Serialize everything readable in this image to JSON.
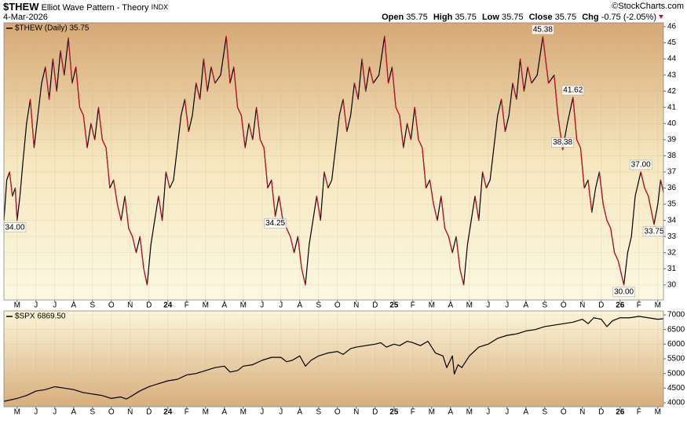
{
  "header": {
    "symbol": "$THEW",
    "name": "Elliot Wave Pattern - Theory",
    "exchange": "INDX",
    "date": "4-Mar-2026",
    "copyright": "©StockCharts.com",
    "quote": [
      {
        "label": "Open",
        "value": 35.75
      },
      {
        "label": "High",
        "value": 35.75
      },
      {
        "label": "Low",
        "value": 35.75
      },
      {
        "label": "Close",
        "value": 35.75
      },
      {
        "label": "Chg",
        "value": "-0.75 (-2.05%)"
      }
    ]
  },
  "chart_data": [
    {
      "type": "line",
      "xlim": [
        -0.7,
        34.3
      ],
      "ylim": [
        29.07,
        46.24
      ],
      "yticks": [
        30,
        31,
        32,
        33,
        34,
        35,
        36,
        37,
        38,
        39,
        40,
        41,
        42,
        43,
        44,
        45,
        46
      ],
      "grid": true,
      "xticks": [
        {
          "value": 0,
          "label": "M"
        },
        {
          "value": 1,
          "label": "J"
        },
        {
          "value": 2,
          "label": "J"
        },
        {
          "value": 3,
          "label": "A"
        },
        {
          "value": 4,
          "label": "S"
        },
        {
          "value": 5,
          "label": "O"
        },
        {
          "value": 6,
          "label": "N"
        },
        {
          "value": 7,
          "label": "D"
        },
        {
          "value": 8,
          "label": "24"
        },
        {
          "value": 9,
          "label": "F"
        },
        {
          "value": 10,
          "label": "M"
        },
        {
          "value": 11,
          "label": "A"
        },
        {
          "value": 12,
          "label": "M"
        },
        {
          "value": 13,
          "label": "J"
        },
        {
          "value": 14,
          "label": "J"
        },
        {
          "value": 15,
          "label": "A"
        },
        {
          "value": 16,
          "label": "S"
        },
        {
          "value": 17,
          "label": "O"
        },
        {
          "value": 18,
          "label": "N"
        },
        {
          "value": 19,
          "label": "D"
        },
        {
          "value": 20,
          "label": "25"
        },
        {
          "value": 21,
          "label": "F"
        },
        {
          "value": 22,
          "label": "M"
        },
        {
          "value": 23,
          "label": "A"
        },
        {
          "value": 24,
          "label": "M"
        },
        {
          "value": 25,
          "label": "J"
        },
        {
          "value": 26,
          "label": "J"
        },
        {
          "value": 27,
          "label": "A"
        },
        {
          "value": 28,
          "label": "S"
        },
        {
          "value": 29,
          "label": "O"
        },
        {
          "value": 30,
          "label": "N"
        },
        {
          "value": 31,
          "label": "D"
        },
        {
          "value": 32,
          "label": "26"
        },
        {
          "value": 33,
          "label": "F"
        },
        {
          "value": 34,
          "label": "M"
        }
      ],
      "series": [
        {
          "name": "$THEW (Daily) 35.75",
          "color": "#000000",
          "down_color": "#c8102e",
          "x": [
            -0.7,
            -0.55,
            -0.4,
            -0.25,
            -0.1,
            0,
            0.15,
            0.3,
            0.5,
            0.7,
            0.9,
            1.1,
            1.3,
            1.5,
            1.7,
            1.9,
            2.1,
            2.3,
            2.5,
            2.72,
            2.92,
            3.12,
            3.32,
            3.52,
            3.72,
            3.92,
            4.12,
            4.32,
            4.52,
            4.72,
            4.92,
            5.12,
            5.32,
            5.52,
            5.72,
            5.92,
            6.12,
            6.32,
            6.52,
            6.72,
            6.9,
            7.1,
            7.3,
            7.5,
            7.7,
            7.9,
            8.1,
            8.3,
            8.5,
            8.7,
            8.9,
            9.1,
            9.3,
            9.5,
            9.7,
            9.9,
            10.1,
            10.3,
            10.5,
            10.8,
            11.1,
            11.3,
            11.5,
            11.7,
            11.9,
            12.1,
            12.3,
            12.5,
            12.7,
            12.9,
            13.1,
            13.3,
            13.5,
            13.7,
            13.9,
            14.1,
            14.3,
            14.5,
            14.7,
            14.9,
            15.1,
            15.3,
            15.5,
            15.7,
            15.9,
            16.1,
            16.3,
            16.5,
            16.7,
            16.9,
            17.1,
            17.3,
            17.5,
            17.7,
            17.9,
            18.1,
            18.3,
            18.5,
            18.7,
            18.9,
            19.2,
            19.5,
            19.7,
            19.9,
            20.1,
            20.3,
            20.5,
            20.7,
            20.9,
            21.1,
            21.3,
            21.5,
            21.7,
            21.9,
            22.1,
            22.3,
            22.5,
            22.7,
            22.9,
            23.1,
            23.3,
            23.5,
            23.7,
            23.9,
            24.1,
            24.3,
            24.5,
            24.7,
            24.9,
            25.1,
            25.3,
            25.5,
            25.7,
            25.9,
            26.1,
            26.3,
            26.5,
            26.7,
            26.9,
            27.1,
            27.3,
            27.6,
            27.9,
            28.2,
            28.5,
            28.7,
            28.95,
            29.2,
            29.5,
            29.7,
            29.9,
            30.1,
            30.3,
            30.5,
            30.7,
            30.9,
            31.1,
            31.3,
            31.5,
            31.7,
            31.9,
            32.2,
            32.4,
            32.6,
            32.8,
            33.1,
            33.3,
            33.5,
            33.8,
            34.0,
            34.15,
            34.3
          ],
          "values": [
            34,
            36.5,
            37,
            35.5,
            36,
            34,
            35.5,
            37.5,
            40,
            41.5,
            38.5,
            40.5,
            42.5,
            43.5,
            41.5,
            44,
            42,
            44.5,
            43,
            45.3,
            42.5,
            43.5,
            41,
            40.5,
            38.5,
            40,
            39,
            41,
            39,
            38.5,
            36,
            36.5,
            35,
            34,
            35.5,
            33.5,
            33,
            32,
            33,
            31,
            30,
            32.5,
            34,
            35.5,
            34,
            37,
            36,
            36.5,
            38.5,
            40.5,
            41.5,
            39.5,
            40.5,
            42.5,
            41.5,
            44,
            42,
            43.5,
            42.5,
            43,
            45.4,
            42.5,
            43.5,
            41,
            40.5,
            38.5,
            40,
            39,
            41,
            39,
            38.5,
            36,
            36.5,
            34.25,
            35.5,
            34,
            33.5,
            33,
            32,
            33,
            31,
            30,
            32.5,
            34,
            35.5,
            34,
            37,
            36,
            36.5,
            38.5,
            40.5,
            41.5,
            39.5,
            40.5,
            42.5,
            41.5,
            44,
            42,
            43.5,
            42.5,
            43,
            45.4,
            42.5,
            43.5,
            41,
            40.5,
            38.5,
            40,
            39,
            41,
            39,
            38.5,
            36,
            36.5,
            35,
            34,
            35.5,
            33.5,
            33,
            32,
            33,
            31,
            30,
            32.5,
            34,
            35.5,
            34,
            37,
            36,
            36.5,
            38.5,
            40.5,
            41.5,
            39.5,
            40.5,
            42.5,
            41.5,
            44,
            42,
            43.5,
            42.5,
            43,
            45.38,
            42.5,
            43,
            40.5,
            38.38,
            40,
            41.62,
            39,
            38.5,
            36,
            36.5,
            34.5,
            36,
            37,
            35,
            34,
            33.5,
            32,
            31.5,
            30,
            32,
            33,
            35.5,
            37,
            36,
            35.5,
            33.75,
            35,
            36.5,
            35.75
          ]
        }
      ],
      "annotations": [
        {
          "x": -0.7,
          "y": 34,
          "label": "34.00"
        },
        {
          "x": 13.7,
          "y": 34.25,
          "label": "34.25"
        },
        {
          "x": 27.9,
          "y": 45.38,
          "label": "45.38"
        },
        {
          "x": 28.95,
          "y": 38.38,
          "label": "38.38"
        },
        {
          "x": 29.5,
          "y": 41.62,
          "label": "41.62"
        },
        {
          "x": 32.2,
          "y": 30,
          "label": "30.00"
        },
        {
          "x": 33.1,
          "y": 37,
          "label": "37.00"
        },
        {
          "x": 33.8,
          "y": 33.75,
          "label": "33.75"
        }
      ]
    },
    {
      "type": "line",
      "xlim": [
        -0.7,
        34.3
      ],
      "ylim": [
        3866,
        7134
      ],
      "yticks": [
        4000,
        4500,
        5000,
        5500,
        6000,
        6500,
        7000
      ],
      "grid": true,
      "xticks": [
        {
          "value": 0,
          "label": "M"
        },
        {
          "value": 1,
          "label": "J"
        },
        {
          "value": 2,
          "label": "J"
        },
        {
          "value": 3,
          "label": "A"
        },
        {
          "value": 4,
          "label": "S"
        },
        {
          "value": 5,
          "label": "O"
        },
        {
          "value": 6,
          "label": "N"
        },
        {
          "value": 7,
          "label": "D"
        },
        {
          "value": 8,
          "label": "24"
        },
        {
          "value": 9,
          "label": "F"
        },
        {
          "value": 10,
          "label": "M"
        },
        {
          "value": 11,
          "label": "A"
        },
        {
          "value": 12,
          "label": "M"
        },
        {
          "value": 13,
          "label": "J"
        },
        {
          "value": 14,
          "label": "J"
        },
        {
          "value": 15,
          "label": "A"
        },
        {
          "value": 16,
          "label": "S"
        },
        {
          "value": 17,
          "label": "O"
        },
        {
          "value": 18,
          "label": "N"
        },
        {
          "value": 19,
          "label": "D"
        },
        {
          "value": 20,
          "label": "25"
        },
        {
          "value": 21,
          "label": "F"
        },
        {
          "value": 22,
          "label": "M"
        },
        {
          "value": 23,
          "label": "A"
        },
        {
          "value": 24,
          "label": "M"
        },
        {
          "value": 25,
          "label": "J"
        },
        {
          "value": 26,
          "label": "J"
        },
        {
          "value": 27,
          "label": "A"
        },
        {
          "value": 28,
          "label": "S"
        },
        {
          "value": 29,
          "label": "O"
        },
        {
          "value": 30,
          "label": "N"
        },
        {
          "value": 31,
          "label": "D"
        },
        {
          "value": 32,
          "label": "26"
        },
        {
          "value": 33,
          "label": "F"
        },
        {
          "value": 34,
          "label": "M"
        }
      ],
      "series": [
        {
          "name": "$SPX 6869.50",
          "color": "#000000",
          "x": [
            -0.7,
            0,
            0.5,
            1,
            1.5,
            2,
            2.5,
            3,
            3.5,
            4,
            4.5,
            5,
            5.5,
            5.8,
            6,
            6.5,
            7,
            7.5,
            8,
            8.5,
            9,
            9.5,
            10,
            10.5,
            11,
            11.3,
            11.7,
            12,
            12.5,
            13,
            13.5,
            14,
            14.3,
            14.6,
            15,
            15.3,
            15.6,
            16,
            16.5,
            17,
            17.3,
            17.7,
            18,
            18.5,
            19,
            19.3,
            19.6,
            20,
            20.3,
            20.7,
            21,
            21.4,
            21.8,
            22.2,
            22.6,
            22.8,
            23.1,
            23.2,
            23.4,
            23.6,
            24,
            24.5,
            25,
            25.5,
            26,
            26.5,
            27,
            27.5,
            28,
            28.5,
            29,
            29.5,
            30,
            30.3,
            30.6,
            31,
            31.3,
            31.6,
            32,
            32.5,
            33,
            33.5,
            34,
            34.3
          ],
          "values": [
            4050,
            4150,
            4250,
            4400,
            4450,
            4550,
            4500,
            4450,
            4350,
            4300,
            4250,
            4150,
            4200,
            4130,
            4200,
            4400,
            4550,
            4650,
            4750,
            4800,
            4950,
            5000,
            5100,
            5200,
            5250,
            5050,
            5100,
            5250,
            5300,
            5450,
            5550,
            5550,
            5400,
            5450,
            5600,
            5250,
            5450,
            5600,
            5700,
            5750,
            5650,
            5850,
            5900,
            5950,
            6000,
            6050,
            5900,
            6000,
            5950,
            6100,
            6050,
            5950,
            6100,
            5700,
            5600,
            5200,
            5600,
            4980,
            5300,
            5200,
            5600,
            5900,
            6000,
            6200,
            6300,
            6350,
            6450,
            6500,
            6600,
            6650,
            6700,
            6750,
            6850,
            6700,
            6900,
            6850,
            6600,
            6800,
            6900,
            6900,
            6950,
            6900,
            6850,
            6870
          ]
        }
      ]
    }
  ]
}
